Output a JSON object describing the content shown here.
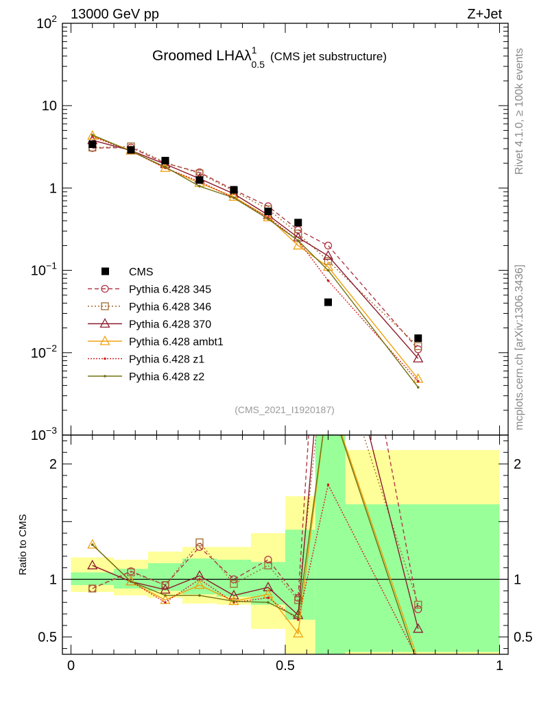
{
  "header": {
    "energy_label": "13000 GeV pp",
    "process_label": "Z+Jet"
  },
  "side_labels": {
    "rivet": "Rivet 4.1.0, ≥ 100k events",
    "mcplots": "mcplots.cern.ch [arXiv:1306.3436]"
  },
  "chart_data": {
    "type": "line",
    "title_prefix": "Groomed LHA",
    "title_lambda": "λ",
    "title_sup": "1",
    "title_sub": "0.5",
    "title_suffix": "(CMS jet substructure)",
    "analysis_id": "(CMS_2021_I1920187)",
    "ratio_ylabel": "Ratio to CMS",
    "xlim": [
      -0.02,
      1.02
    ],
    "main_ylim_log10": [
      -3,
      2
    ],
    "ratio_ylim": [
      0.35,
      2.25
    ],
    "x_ticks": [
      {
        "v": 0,
        "label": "0"
      },
      {
        "v": 0.5,
        "label": "0.5"
      },
      {
        "v": 1,
        "label": "1"
      }
    ],
    "main_y_ticks": [
      {
        "exp": 2,
        "base": "10",
        "sup": "2"
      },
      {
        "exp": 1,
        "base": "10",
        "sup": ""
      },
      {
        "exp": 0,
        "base": "1",
        "sup": ""
      },
      {
        "exp": -1,
        "base": "10",
        "sup": "−1"
      },
      {
        "exp": -2,
        "base": "10",
        "sup": "−2"
      },
      {
        "exp": -3,
        "base": "10",
        "sup": "−3"
      }
    ],
    "ratio_y_ticks": [
      {
        "v": 0.5,
        "label": "0.5"
      },
      {
        "v": 1,
        "label": "1"
      },
      {
        "v": 2,
        "label": "2"
      }
    ],
    "data": {
      "name": "CMS",
      "x": [
        0.05,
        0.14,
        0.22,
        0.3,
        0.38,
        0.46,
        0.53,
        0.6,
        0.81
      ],
      "y": [
        3.4,
        2.9,
        2.15,
        1.25,
        0.95,
        0.52,
        0.38,
        0.041,
        0.015
      ]
    },
    "bins": [
      {
        "lo": 0.0,
        "hi": 0.1,
        "g": [
          0.95,
          1.06
        ],
        "y": [
          0.89,
          1.19
        ]
      },
      {
        "lo": 0.1,
        "hi": 0.18,
        "g": [
          0.92,
          1.09
        ],
        "y": [
          0.86,
          1.17
        ]
      },
      {
        "lo": 0.18,
        "hi": 0.26,
        "g": [
          0.9,
          1.14
        ],
        "y": [
          0.84,
          1.24
        ]
      },
      {
        "lo": 0.26,
        "hi": 0.34,
        "g": [
          0.87,
          1.18
        ],
        "y": [
          0.79,
          1.28
        ]
      },
      {
        "lo": 0.34,
        "hi": 0.42,
        "g": [
          0.85,
          1.17
        ],
        "y": [
          0.78,
          1.28
        ]
      },
      {
        "lo": 0.42,
        "hi": 0.5,
        "g": [
          0.78,
          1.15
        ],
        "y": [
          0.57,
          1.4
        ]
      },
      {
        "lo": 0.5,
        "hi": 0.57,
        "g": [
          0.65,
          1.43
        ],
        "y": [
          0.3,
          1.72
        ]
      },
      {
        "lo": 0.57,
        "hi": 0.64,
        "g": [
          0.32,
          2.6
        ],
        "y": [
          0.3,
          2.6
        ]
      },
      {
        "lo": 0.64,
        "hi": 1.0,
        "g": [
          0.37,
          1.65
        ],
        "y": [
          0.32,
          2.12
        ]
      }
    ],
    "series": [
      {
        "name": "Pythia 6.428 345",
        "color": "#b03545",
        "dash": "6,4",
        "marker": "circle",
        "y": [
          3.05,
          3.1,
          2.0,
          1.55,
          0.95,
          0.6,
          0.31,
          0.2,
          0.011
        ],
        "ratio": [
          0.92,
          1.07,
          0.95,
          1.28,
          1.0,
          1.17,
          0.84,
          4.88,
          0.74
        ]
      },
      {
        "name": "Pythia 6.428 346",
        "color": "#a06830",
        "dash": "2,3",
        "marker": "square",
        "y": [
          3.1,
          3.2,
          2.05,
          1.5,
          0.92,
          0.55,
          0.28,
          0.13,
          0.012
        ],
        "ratio": [
          0.92,
          1.06,
          0.95,
          1.32,
          0.96,
          1.12,
          0.82,
          3.2,
          0.78
        ]
      },
      {
        "name": "Pythia 6.428 370",
        "color": "#8b1a2a",
        "dash": "",
        "marker": "triangle",
        "y": [
          3.8,
          2.85,
          1.95,
          1.3,
          0.85,
          0.47,
          0.25,
          0.15,
          0.0085
        ],
        "ratio": [
          1.12,
          0.98,
          0.91,
          1.03,
          0.86,
          0.93,
          0.69,
          3.66,
          0.57
        ]
      },
      {
        "name": "Pythia 6.428 ambt1",
        "color": "#f0a010",
        "dash": "",
        "marker": "triangle",
        "y": [
          4.3,
          2.85,
          1.75,
          1.15,
          0.78,
          0.44,
          0.2,
          0.11,
          0.0048
        ],
        "ratio": [
          1.3,
          0.98,
          0.82,
          0.95,
          0.81,
          0.87,
          0.53,
          2.6,
          0.3
        ]
      },
      {
        "name": "Pythia 6.428 z1",
        "color": "#d02020",
        "dash": "2,2",
        "marker": "dot",
        "y": [
          4.2,
          2.8,
          1.75,
          1.2,
          0.76,
          0.44,
          0.23,
          0.075,
          0.0045
        ],
        "ratio": [
          1.3,
          0.98,
          0.8,
          1.0,
          0.8,
          0.84,
          0.65,
          1.82,
          0.3
        ]
      },
      {
        "name": "Pythia 6.428 z2",
        "color": "#707010",
        "dash": "",
        "marker": "dot",
        "y": [
          4.4,
          2.8,
          1.8,
          1.05,
          0.76,
          0.42,
          0.23,
          0.1,
          0.0038
        ],
        "ratio": [
          1.3,
          0.98,
          0.86,
          0.86,
          0.81,
          0.8,
          0.67,
          2.58,
          0.25
        ]
      }
    ]
  }
}
